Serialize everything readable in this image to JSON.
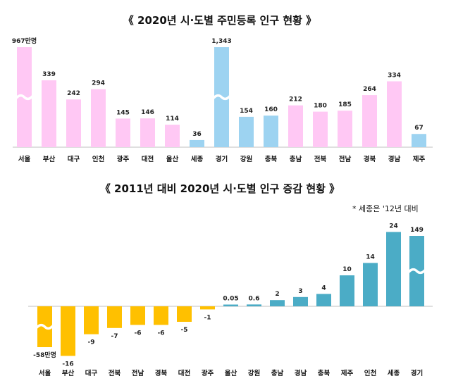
{
  "chart_data": [
    {
      "type": "bar",
      "title": "《 2020년 시·도별 주민등록 인구 현황 》",
      "categories": [
        "서울",
        "부산",
        "대구",
        "인천",
        "광주",
        "대전",
        "울산",
        "세종",
        "경기",
        "강원",
        "충북",
        "충남",
        "전북",
        "전남",
        "경북",
        "경남",
        "제주"
      ],
      "values": [
        967,
        339,
        242,
        294,
        145,
        146,
        114,
        36,
        1343,
        154,
        160,
        212,
        180,
        185,
        264,
        334,
        67
      ],
      "labels": [
        "967만명",
        "339",
        "242",
        "294",
        "145",
        "146",
        "114",
        "36",
        "1,343",
        "154",
        "160",
        "212",
        "180",
        "185",
        "264",
        "334",
        "67"
      ],
      "colors": [
        "#FFC8F4",
        "#FFC8F4",
        "#FFC8F4",
        "#FFC8F4",
        "#FFC8F4",
        "#FFC8F4",
        "#FFC8F4",
        "#9DD3F1",
        "#9DD3F1",
        "#9DD3F1",
        "#9DD3F1",
        "#FFC8F4",
        "#FFC8F4",
        "#FFC8F4",
        "#FFC8F4",
        "#FFC8F4",
        "#9DD3F1"
      ],
      "axis_break": [
        "서울",
        "경기"
      ]
    },
    {
      "type": "bar",
      "title": "《 2011년 대비 2020년 시·도별 인구 증감 현황 》",
      "note": "* 세종은 '12년 대비",
      "categories": [
        "서울",
        "부산",
        "대구",
        "전북",
        "전남",
        "경북",
        "대전",
        "광주",
        "울산",
        "강원",
        "충남",
        "경남",
        "충북",
        "제주",
        "인천",
        "세종",
        "경기"
      ],
      "values": [
        -58,
        -16,
        -9,
        -7,
        -6,
        -6,
        -5,
        -1,
        0.05,
        0.6,
        2,
        3,
        4,
        10,
        14,
        24,
        149
      ],
      "labels": [
        "-58만명",
        "-16",
        "-9",
        "-7",
        "-6",
        "-6",
        "-5",
        "-1",
        "0.05",
        "0.6",
        "2",
        "3",
        "4",
        "10",
        "14",
        "24",
        "149"
      ],
      "colors": [
        "#FFC000",
        "#FFC000",
        "#FFC000",
        "#FFC000",
        "#FFC000",
        "#FFC000",
        "#FFC000",
        "#FFC000",
        "#4BACC6",
        "#4BACC6",
        "#4BACC6",
        "#4BACC6",
        "#4BACC6",
        "#4BACC6",
        "#4BACC6",
        "#4BACC6",
        "#4BACC6"
      ],
      "axis_break": [
        "서울",
        "경기"
      ]
    }
  ]
}
